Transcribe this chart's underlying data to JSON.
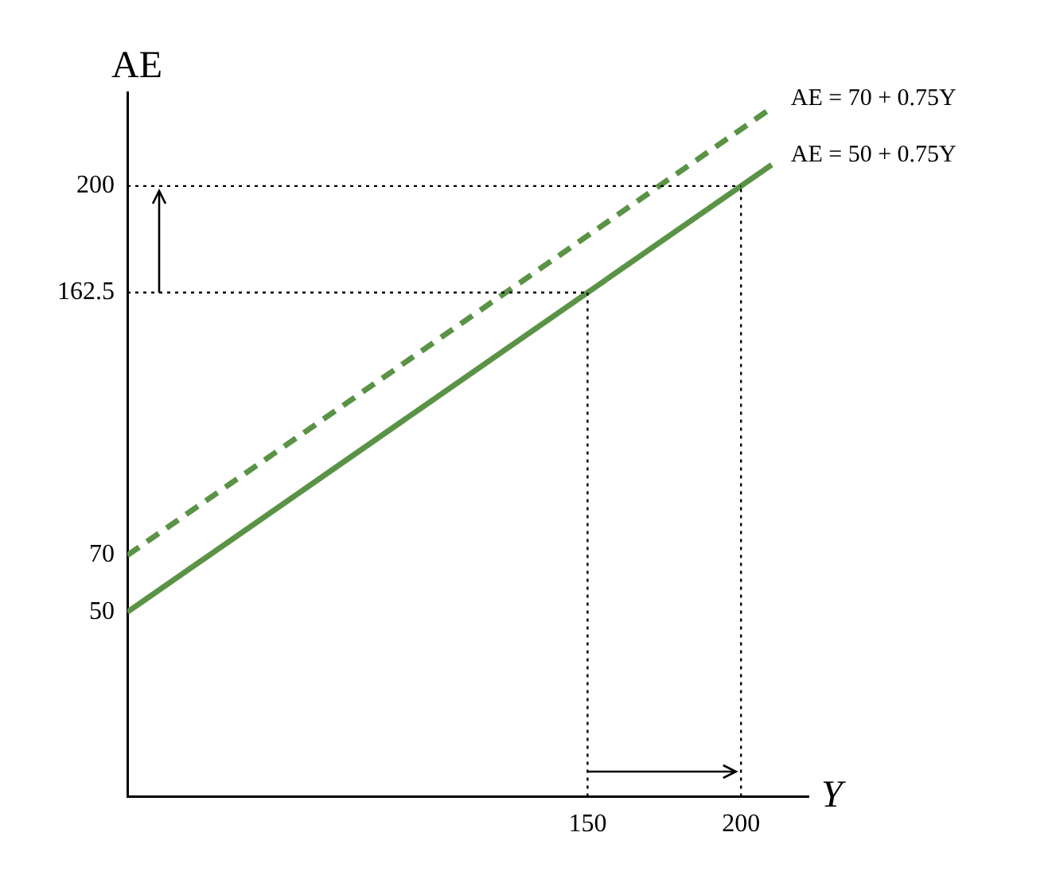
{
  "chart_data": {
    "type": "line",
    "xlabel": "Y",
    "ylabel": "AE",
    "x": [
      0,
      210
    ],
    "series": [
      {
        "name": "AE = 70 + 0.75Y",
        "color": "#5b9346",
        "values": [
          70,
          227.5
        ],
        "line_style": "dashed"
      },
      {
        "name": "AE = 50 + 0.75Y",
        "color": "#5b9346",
        "values": [
          50,
          207.5
        ],
        "line_style": "solid"
      }
    ],
    "xlim": [
      0,
      222
    ],
    "ylim": [
      -15,
      233
    ],
    "xticks": [
      150,
      200
    ],
    "yticks": [
      50,
      70,
      162.5,
      200
    ],
    "ref_lines": [
      {
        "axis": "y",
        "value": 200,
        "line_style": "dotted"
      },
      {
        "axis": "y",
        "value": 162.5,
        "line_style": "dotted"
      },
      {
        "axis": "x",
        "value": 150,
        "line_style": "dotted"
      },
      {
        "axis": "x",
        "value": 200,
        "line_style": "dotted"
      }
    ],
    "grid": false,
    "legend": false,
    "marker": "none"
  }
}
